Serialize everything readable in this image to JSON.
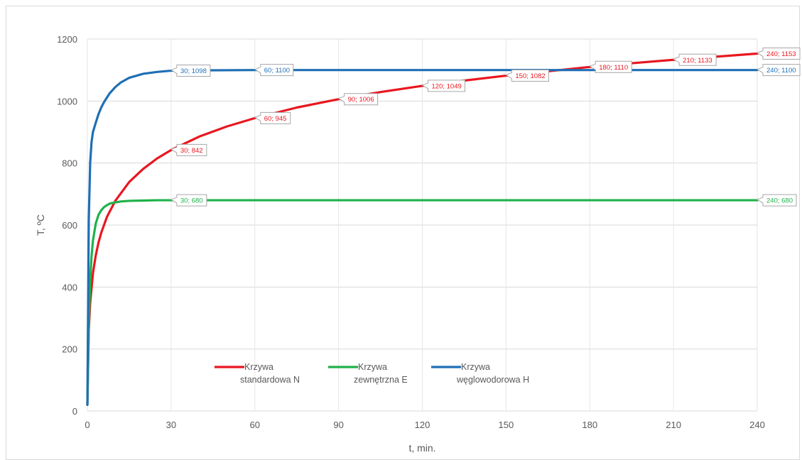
{
  "chart_data": {
    "type": "line",
    "xlabel": "t, min.",
    "ylabel": "T, ºC",
    "xlim": [
      0,
      240
    ],
    "ylim": [
      0,
      1200
    ],
    "xticks": [
      0,
      30,
      60,
      90,
      120,
      150,
      180,
      210,
      240
    ],
    "yticks": [
      0,
      200,
      400,
      600,
      800,
      1000,
      1200
    ],
    "grid": true,
    "legend_position": "bottom-center",
    "series": [
      {
        "name": "Krzywa standardowa N",
        "legend_lines": [
          "Krzywa",
          "standardowa N"
        ],
        "color": "#e8171f",
        "points": [
          [
            0,
            20
          ],
          [
            0.5,
            261
          ],
          [
            1,
            349
          ],
          [
            2,
            445
          ],
          [
            3,
            502
          ],
          [
            4,
            544
          ],
          [
            5,
            576
          ],
          [
            7,
            626
          ],
          [
            10,
            678
          ],
          [
            15,
            739
          ],
          [
            20,
            781
          ],
          [
            25,
            815
          ],
          [
            30,
            842
          ],
          [
            40,
            885
          ],
          [
            50,
            918
          ],
          [
            60,
            945
          ],
          [
            75,
            979
          ],
          [
            90,
            1006
          ],
          [
            105,
            1029
          ],
          [
            120,
            1049
          ],
          [
            135,
            1066
          ],
          [
            150,
            1082
          ],
          [
            165,
            1096
          ],
          [
            180,
            1110
          ],
          [
            195,
            1122
          ],
          [
            210,
            1133
          ],
          [
            225,
            1143
          ],
          [
            240,
            1153
          ]
        ],
        "labels": [
          {
            "x": 30,
            "y": 842,
            "text": "30; 842"
          },
          {
            "x": 60,
            "y": 945,
            "text": "60; 945"
          },
          {
            "x": 90,
            "y": 1006,
            "text": "90; 1006"
          },
          {
            "x": 120,
            "y": 1049,
            "text": "120; 1049"
          },
          {
            "x": 150,
            "y": 1082,
            "text": "150; 1082"
          },
          {
            "x": 180,
            "y": 1110,
            "text": "180; 1110"
          },
          {
            "x": 210,
            "y": 1133,
            "text": "210; 1133"
          },
          {
            "x": 240,
            "y": 1153,
            "text": "240; 1153"
          }
        ]
      },
      {
        "name": "Krzywa zewnętrzna E",
        "legend_lines": [
          "Krzywa",
          "zewnętrzna E"
        ],
        "color": "#1fb24a",
        "points": [
          [
            0,
            20
          ],
          [
            0.5,
            284
          ],
          [
            1,
            418
          ],
          [
            1.5,
            499
          ],
          [
            2,
            550
          ],
          [
            3,
            605
          ],
          [
            4,
            633
          ],
          [
            5,
            648
          ],
          [
            6,
            658
          ],
          [
            7,
            664
          ],
          [
            8,
            669
          ],
          [
            10,
            673
          ],
          [
            12,
            676
          ],
          [
            15,
            678
          ],
          [
            20,
            679
          ],
          [
            25,
            680
          ],
          [
            30,
            680
          ],
          [
            60,
            680
          ],
          [
            120,
            680
          ],
          [
            180,
            680
          ],
          [
            240,
            680
          ]
        ],
        "labels": [
          {
            "x": 30,
            "y": 680,
            "text": "30; 680"
          },
          {
            "x": 240,
            "y": 680,
            "text": "240; 680"
          }
        ]
      },
      {
        "name": "Krzywa węglowodorowa H",
        "legend_lines": [
          "Krzywa",
          "węglowodorowa H"
        ],
        "color": "#1f6fb5",
        "points": [
          [
            0,
            20
          ],
          [
            0.5,
            616
          ],
          [
            1,
            801
          ],
          [
            1.5,
            868
          ],
          [
            2,
            900
          ],
          [
            3,
            930
          ],
          [
            4,
            958
          ],
          [
            5,
            980
          ],
          [
            6,
            997
          ],
          [
            8,
            1025
          ],
          [
            10,
            1045
          ],
          [
            12,
            1060
          ],
          [
            15,
            1075
          ],
          [
            20,
            1088
          ],
          [
            25,
            1094
          ],
          [
            30,
            1098
          ],
          [
            40,
            1099
          ],
          [
            60,
            1100
          ],
          [
            120,
            1100
          ],
          [
            180,
            1100
          ],
          [
            240,
            1100
          ]
        ],
        "labels": [
          {
            "x": 30,
            "y": 1098,
            "text": "30; 1098"
          },
          {
            "x": 60,
            "y": 1100,
            "text": "60; 1100"
          },
          {
            "x": 240,
            "y": 1100,
            "text": "240; 1100"
          }
        ]
      }
    ]
  }
}
